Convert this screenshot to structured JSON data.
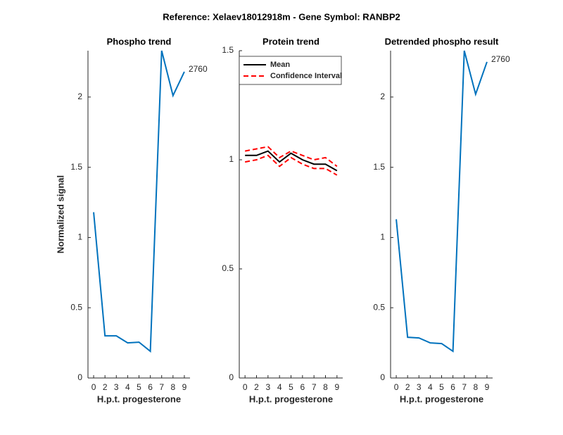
{
  "title": "Reference:  Xelaev18012918m - Gene Symbol:  RANBP2",
  "chart_data": [
    {
      "type": "line",
      "title": "Phospho trend",
      "xlabel": "H.p.t. progesterone",
      "ylabel": "Normalized signal",
      "categories": [
        "0",
        "2",
        "3",
        "4",
        "5",
        "6",
        "7",
        "8",
        "9"
      ],
      "series": [
        {
          "color": "#0072bd",
          "values": [
            1.18,
            0.3,
            0.3,
            0.25,
            0.255,
            0.19,
            2.33,
            2.01,
            2.18
          ]
        }
      ],
      "ylim": [
        0,
        2.33
      ],
      "yticks": [
        0,
        0.5,
        1,
        1.5,
        2
      ],
      "annotation": "2760"
    },
    {
      "type": "line",
      "title": "Protein trend",
      "xlabel": "H.p.t. progesterone",
      "categories": [
        "0",
        "2",
        "3",
        "4",
        "5",
        "6",
        "7",
        "8",
        "9"
      ],
      "series": [
        {
          "name": "Mean",
          "color": "#000000",
          "values": [
            1.02,
            1.02,
            1.04,
            0.99,
            1.03,
            1.0,
            0.98,
            0.98,
            0.95
          ]
        },
        {
          "name": "Confidence Interval",
          "color": "#ff0000",
          "style": "dashed",
          "upper": [
            1.04,
            1.05,
            1.06,
            1.01,
            1.04,
            1.02,
            1.0,
            1.01,
            0.97
          ],
          "lower": [
            0.99,
            1.0,
            1.02,
            0.97,
            1.01,
            0.98,
            0.96,
            0.96,
            0.93
          ]
        }
      ],
      "ylim": [
        0,
        1.5
      ],
      "yticks": [
        0,
        0.5,
        1,
        1.5
      ],
      "legend": "northeast"
    },
    {
      "type": "line",
      "title": "Detrended phospho result",
      "xlabel": "H.p.t. progesterone",
      "categories": [
        "0",
        "2",
        "3",
        "4",
        "5",
        "6",
        "7",
        "8",
        "9"
      ],
      "series": [
        {
          "color": "#0072bd",
          "values": [
            1.13,
            0.29,
            0.285,
            0.25,
            0.245,
            0.19,
            2.33,
            2.02,
            2.25
          ]
        }
      ],
      "ylim": [
        0,
        2.33
      ],
      "yticks": [
        0,
        0.5,
        1,
        1.5,
        2
      ],
      "annotation": "2760"
    }
  ]
}
